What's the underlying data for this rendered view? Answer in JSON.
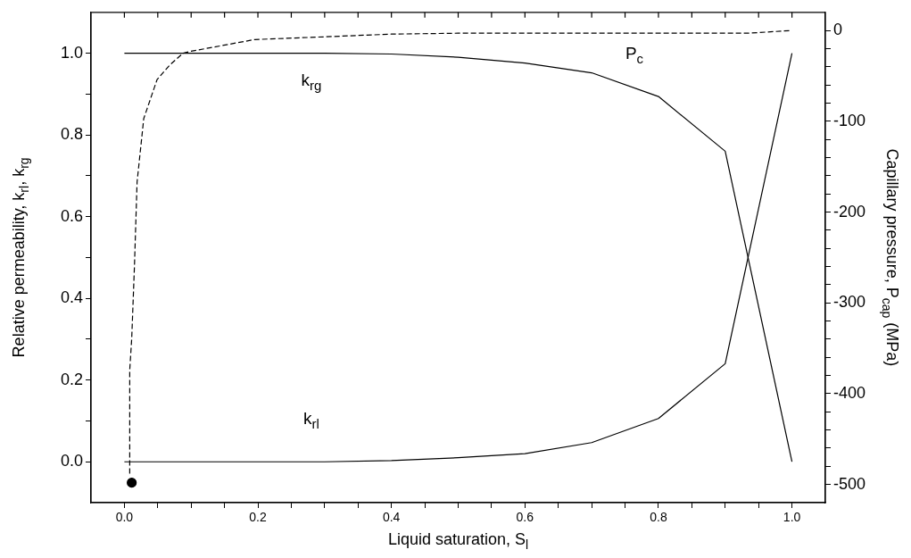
{
  "chart_data": {
    "type": "line",
    "xlabel": "Liquid saturation, S$_{l}$",
    "ylabel": "Relative permeability, k$_{rl}$, k$_{rg}$",
    "y2label": "Capillary pressure, P$_{cap}$ (MPa)",
    "xlim": [
      -0.05,
      1.05
    ],
    "xticks": [
      {
        "value": 0,
        "label": "0.0"
      },
      {
        "value": 0.05,
        "label": null
      },
      {
        "value": 0.1,
        "label": null
      },
      {
        "value": 0.15,
        "label": null
      },
      0.2,
      {
        "value": 0.25,
        "label": null
      },
      {
        "value": 0.3,
        "label": null
      },
      {
        "value": 0.35,
        "label": null
      },
      0.4,
      {
        "value": 0.45,
        "label": null
      },
      {
        "value": 0.5,
        "label": null
      },
      {
        "value": 0.55,
        "label": null
      },
      0.6,
      {
        "value": 0.65,
        "label": null
      },
      {
        "value": 0.7,
        "label": null
      },
      {
        "value": 0.75,
        "label": null
      },
      0.8,
      {
        "value": 0.85,
        "label": null
      },
      {
        "value": 0.9,
        "label": null
      },
      {
        "value": 0.95,
        "label": null
      },
      {
        "value": 1,
        "label": "1.0"
      }
    ],
    "ylim": [
      -0.1,
      1.1
    ],
    "yticks": [
      {
        "value": 0,
        "label": "0.0"
      },
      {
        "value": 0.1,
        "label": null
      },
      0.2,
      {
        "value": 0.3,
        "label": null
      },
      0.4,
      {
        "value": 0.5,
        "label": null
      },
      0.6,
      {
        "value": 0.7,
        "label": null
      },
      0.8,
      {
        "value": 0.9,
        "label": null
      },
      {
        "value": 1,
        "label": "1.0"
      }
    ],
    "y2lim": [
      -520,
      20
    ],
    "y2ticks": [
      -500,
      {
        "value": -480,
        "label": null
      },
      {
        "value": -460,
        "label": null
      },
      {
        "value": -440,
        "label": null
      },
      {
        "value": -420,
        "label": null
      },
      -400,
      {
        "value": -380,
        "label": null
      },
      {
        "value": -360,
        "label": null
      },
      {
        "value": -340,
        "label": null
      },
      {
        "value": -320,
        "label": null
      },
      -300,
      {
        "value": -280,
        "label": null
      },
      {
        "value": -260,
        "label": null
      },
      {
        "value": -240,
        "label": null
      },
      {
        "value": -220,
        "label": null
      },
      -200,
      {
        "value": -180,
        "label": null
      },
      {
        "value": -160,
        "label": null
      },
      {
        "value": -140,
        "label": null
      },
      {
        "value": -120,
        "label": null
      },
      -100,
      {
        "value": -80,
        "label": null
      },
      {
        "value": -60,
        "label": null
      },
      {
        "value": -40,
        "label": null
      },
      {
        "value": -20,
        "label": null
      },
      0
    ],
    "grid": false,
    "legend": false,
    "series": [
      {
        "name": "k$_{rg}$",
        "color": "#000000",
        "line_style": "solid",
        "marker": "none",
        "x": [
          0,
          0.1,
          0.2,
          0.3,
          0.4,
          0.5,
          0.6,
          0.7,
          0.8,
          0.9,
          1
        ],
        "values": [
          1,
          1,
          1,
          1,
          0.998,
          0.99,
          0.976,
          0.952,
          0.894,
          0.76,
          0
        ]
      },
      {
        "name": "k$_{rl}$",
        "color": "#000000",
        "line_style": "solid",
        "marker": "none",
        "x": [
          0,
          0.1,
          0.2,
          0.3,
          0.4,
          0.5,
          0.6,
          0.7,
          0.8,
          0.9,
          1
        ],
        "values": [
          0,
          0,
          0,
          0,
          0.003,
          0.01,
          0.02,
          0.047,
          0.106,
          0.24,
          1
        ]
      },
      {
        "name": "P$_{c}$",
        "color": "#000000",
        "line_style": "dashed",
        "marker": "none",
        "axis": "y2",
        "x": [
          0.008,
          0.008,
          0.011,
          0.015,
          0.019,
          0.029,
          0.049,
          0.068,
          0.088,
          0.099,
          0.195,
          0.299,
          0.4,
          0.5,
          0.935,
          1
        ],
        "values": [
          -488,
          -374,
          -339,
          -261,
          -167,
          -97,
          -54,
          -38,
          -25,
          -23,
          -10,
          -7,
          -4,
          -3,
          -3,
          0
        ]
      },
      {
        "type": "scatter",
        "color": "#000000",
        "marker": "circle",
        "axis": "y2",
        "x": [
          0.011
        ],
        "values": [
          -498
        ]
      }
    ]
  }
}
